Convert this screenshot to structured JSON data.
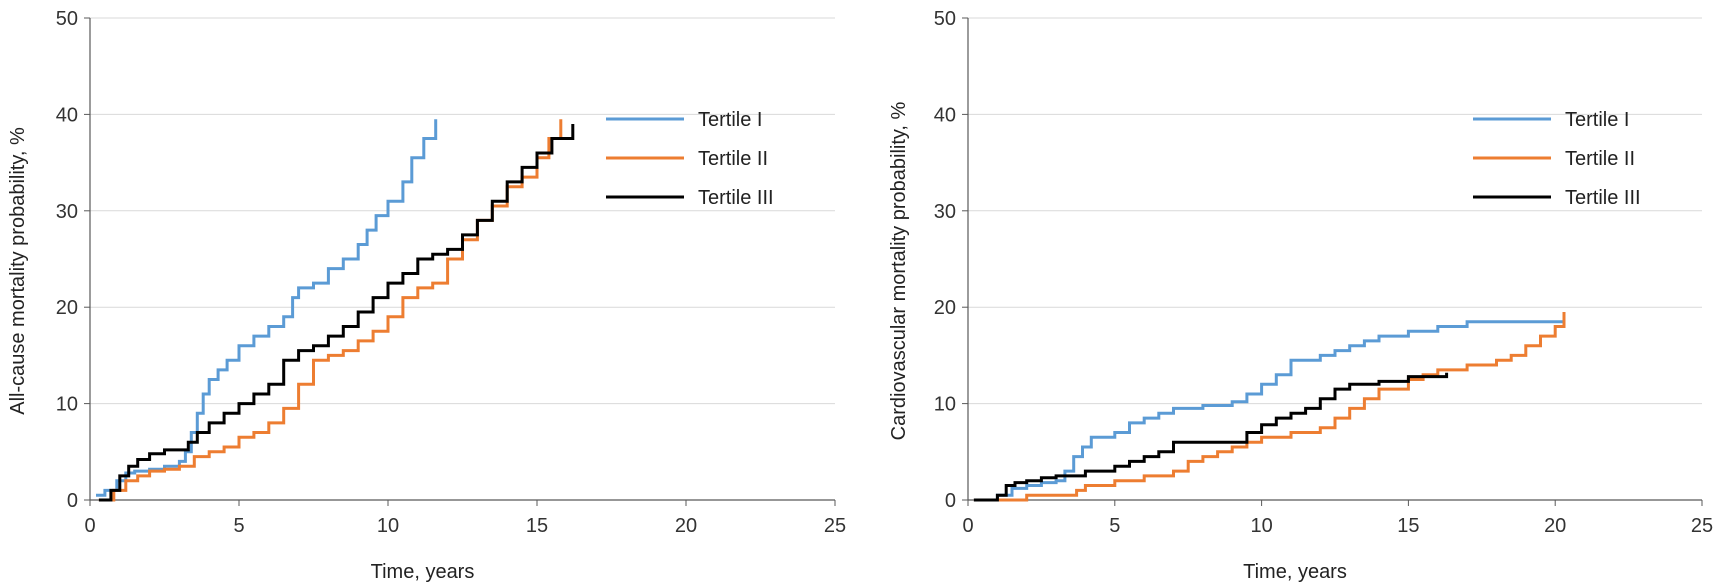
{
  "chart_data": [
    {
      "type": "line",
      "title": "",
      "xlabel": "Time, years",
      "ylabel": "All-cause mortality probability, %",
      "xlim": [
        0,
        25
      ],
      "ylim": [
        0,
        50
      ],
      "xticks": [
        0,
        5,
        10,
        15,
        20,
        25
      ],
      "yticks": [
        0,
        10,
        20,
        30,
        40,
        50
      ],
      "grid": "horizontal",
      "legend_position": "top-right",
      "series": [
        {
          "name": "Tertile I",
          "color": "#5B9BD5",
          "x": [
            0.2,
            0.5,
            0.9,
            1.2,
            1.5,
            2.0,
            2.5,
            3.0,
            3.2,
            3.4,
            3.6,
            3.8,
            4.0,
            4.3,
            4.6,
            5.0,
            5.5,
            6.0,
            6.5,
            6.8,
            7.0,
            7.5,
            8.0,
            8.5,
            9.0,
            9.3,
            9.6,
            10.0,
            10.5,
            10.8,
            11.2,
            11.6
          ],
          "y": [
            0.5,
            1.0,
            2.0,
            2.8,
            3.0,
            3.2,
            3.5,
            4.0,
            5.0,
            7.0,
            9.0,
            11.0,
            12.5,
            13.5,
            14.5,
            16.0,
            17.0,
            18.0,
            19.0,
            21.0,
            22.0,
            22.5,
            24.0,
            25.0,
            26.5,
            28.0,
            29.5,
            31.0,
            33.0,
            35.5,
            37.5,
            39.5
          ]
        },
        {
          "name": "Tertile II",
          "color": "#ED7D31",
          "x": [
            0.3,
            0.8,
            1.2,
            1.6,
            2.0,
            2.5,
            3.0,
            3.5,
            4.0,
            4.5,
            5.0,
            5.5,
            6.0,
            6.5,
            7.0,
            7.5,
            8.0,
            8.5,
            9.0,
            9.5,
            10.0,
            10.5,
            11.0,
            11.5,
            12.0,
            12.5,
            13.0,
            13.5,
            14.0,
            14.5,
            15.0,
            15.4,
            15.8
          ],
          "y": [
            0.0,
            1.0,
            2.0,
            2.5,
            3.0,
            3.2,
            3.5,
            4.5,
            5.0,
            5.5,
            6.5,
            7.0,
            8.0,
            9.5,
            12.0,
            14.5,
            15.0,
            15.5,
            16.5,
            17.5,
            19.0,
            21.0,
            22.0,
            22.5,
            25.0,
            27.0,
            29.0,
            30.5,
            32.5,
            33.5,
            35.5,
            37.5,
            39.5
          ]
        },
        {
          "name": "Tertile III",
          "color": "#000000",
          "x": [
            0.3,
            0.7,
            1.0,
            1.3,
            1.6,
            2.0,
            2.5,
            3.0,
            3.3,
            3.6,
            4.0,
            4.5,
            5.0,
            5.5,
            6.0,
            6.5,
            7.0,
            7.5,
            8.0,
            8.5,
            9.0,
            9.5,
            10.0,
            10.5,
            11.0,
            11.5,
            12.0,
            12.5,
            13.0,
            13.5,
            14.0,
            14.5,
            15.0,
            15.5,
            16.2
          ],
          "y": [
            0.0,
            1.0,
            2.5,
            3.5,
            4.2,
            4.8,
            5.2,
            5.2,
            6.0,
            7.0,
            8.0,
            9.0,
            10.0,
            11.0,
            12.0,
            14.5,
            15.5,
            16.0,
            17.0,
            18.0,
            19.5,
            21.0,
            22.5,
            23.5,
            25.0,
            25.5,
            26.0,
            27.5,
            29.0,
            31.0,
            33.0,
            34.5,
            36.0,
            37.5,
            39.0
          ]
        }
      ]
    },
    {
      "type": "line",
      "title": "",
      "xlabel": "Time, years",
      "ylabel": "Cardiovascular mortality probability, %",
      "xlim": [
        0,
        25
      ],
      "ylim": [
        0,
        50
      ],
      "xticks": [
        0,
        5,
        10,
        15,
        20,
        25
      ],
      "yticks": [
        0,
        10,
        20,
        30,
        40,
        50
      ],
      "grid": "horizontal",
      "legend_position": "top-right",
      "series": [
        {
          "name": "Tertile I",
          "color": "#5B9BD5",
          "x": [
            0.2,
            1.0,
            1.5,
            2.0,
            2.5,
            3.0,
            3.3,
            3.6,
            3.9,
            4.2,
            5.0,
            5.5,
            6.0,
            6.5,
            7.0,
            8.0,
            9.0,
            9.5,
            10.0,
            10.5,
            11.0,
            12.0,
            12.5,
            13.0,
            13.5,
            14.0,
            15.0,
            16.0,
            17.0,
            18.0,
            19.0,
            20.3
          ],
          "y": [
            0.0,
            0.5,
            1.2,
            1.5,
            1.8,
            2.0,
            3.0,
            4.5,
            5.5,
            6.5,
            7.0,
            8.0,
            8.5,
            9.0,
            9.5,
            9.8,
            10.2,
            11.0,
            12.0,
            13.0,
            14.5,
            15.0,
            15.5,
            16.0,
            16.5,
            17.0,
            17.5,
            18.0,
            18.5,
            18.5,
            18.5,
            18.8
          ]
        },
        {
          "name": "Tertile II",
          "color": "#ED7D31",
          "x": [
            0.2,
            1.5,
            2.0,
            3.0,
            3.7,
            4.0,
            5.0,
            6.0,
            7.0,
            7.5,
            8.0,
            8.5,
            9.0,
            9.5,
            10.0,
            11.0,
            12.0,
            12.5,
            13.0,
            13.5,
            14.0,
            15.0,
            15.5,
            16.0,
            17.0,
            18.0,
            18.5,
            19.0,
            19.5,
            20.0,
            20.3
          ],
          "y": [
            0.0,
            0.0,
            0.5,
            0.5,
            1.0,
            1.5,
            2.0,
            2.5,
            3.0,
            4.0,
            4.5,
            5.0,
            5.5,
            6.0,
            6.5,
            7.0,
            7.5,
            8.5,
            9.5,
            10.5,
            11.5,
            12.5,
            13.0,
            13.5,
            14.0,
            14.5,
            15.0,
            16.0,
            17.0,
            18.0,
            19.5
          ]
        },
        {
          "name": "Tertile III",
          "color": "#000000",
          "x": [
            0.2,
            1.0,
            1.3,
            1.6,
            2.0,
            2.5,
            3.0,
            4.0,
            5.0,
            5.5,
            6.0,
            6.5,
            7.0,
            8.0,
            9.0,
            9.5,
            10.0,
            10.5,
            11.0,
            11.5,
            12.0,
            12.5,
            13.0,
            14.0,
            15.0,
            16.3
          ],
          "y": [
            0.0,
            0.5,
            1.5,
            1.8,
            2.0,
            2.3,
            2.5,
            3.0,
            3.5,
            4.0,
            4.5,
            5.0,
            6.0,
            6.0,
            6.0,
            7.0,
            7.8,
            8.5,
            9.0,
            9.5,
            10.5,
            11.5,
            12.0,
            12.3,
            12.8,
            13.2
          ]
        }
      ]
    }
  ]
}
